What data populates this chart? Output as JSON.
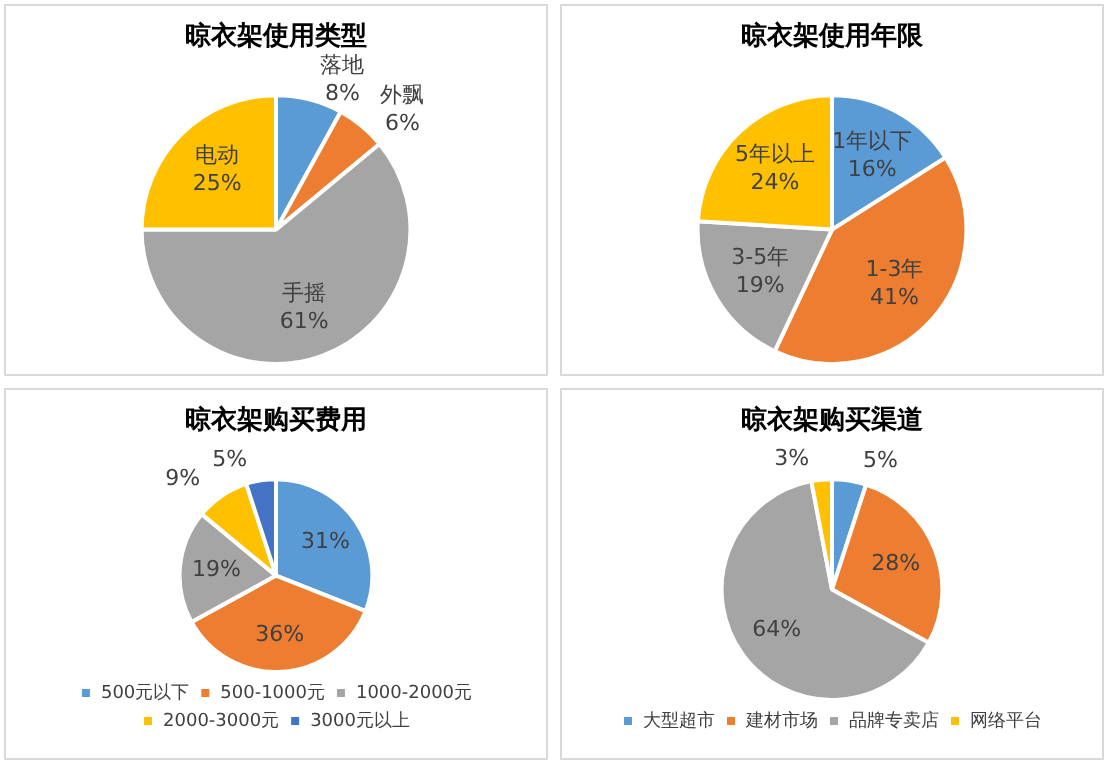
{
  "chart_data": [
    {
      "type": "pie",
      "title": "晾衣架使用类型",
      "categories": [
        "落地",
        "外飘",
        "手摇",
        "电动"
      ],
      "values": [
        8,
        6,
        61,
        25
      ],
      "colors": [
        "#5b9bd5",
        "#ed7d31",
        "#a5a5a5",
        "#ffc000"
      ],
      "value_labels": [
        "8%",
        "6%",
        "61%",
        "25%"
      ],
      "legend": false
    },
    {
      "type": "pie",
      "title": "晾衣架使用年限",
      "categories": [
        "1年以下",
        "1-3年",
        "3-5年",
        "5年以上"
      ],
      "values": [
        16,
        41,
        19,
        24
      ],
      "colors": [
        "#5b9bd5",
        "#ed7d31",
        "#a5a5a5",
        "#ffc000"
      ],
      "value_labels": [
        "16%",
        "41%",
        "19%",
        "24%"
      ],
      "legend": false
    },
    {
      "type": "pie",
      "title": "晾衣架购买费用",
      "categories": [
        "500元以下",
        "500-1000元",
        "1000-2000元",
        "2000-3000元",
        "3000元以上"
      ],
      "values": [
        31,
        36,
        19,
        9,
        5
      ],
      "colors": [
        "#5b9bd5",
        "#ed7d31",
        "#a5a5a5",
        "#ffc000",
        "#4472c4"
      ],
      "value_labels": [
        "31%",
        "36%",
        "19%",
        "9%",
        "5%"
      ],
      "legend": "bottom"
    },
    {
      "type": "pie",
      "title": "晾衣架购买渠道",
      "categories": [
        "大型超市",
        "建材市场",
        "品牌专卖店",
        "网络平台"
      ],
      "values": [
        5,
        28,
        64,
        3
      ],
      "colors": [
        "#5b9bd5",
        "#ed7d31",
        "#a5a5a5",
        "#ffc000"
      ],
      "value_labels": [
        "5%",
        "28%",
        "64%",
        "3%"
      ],
      "legend": "bottom"
    }
  ]
}
